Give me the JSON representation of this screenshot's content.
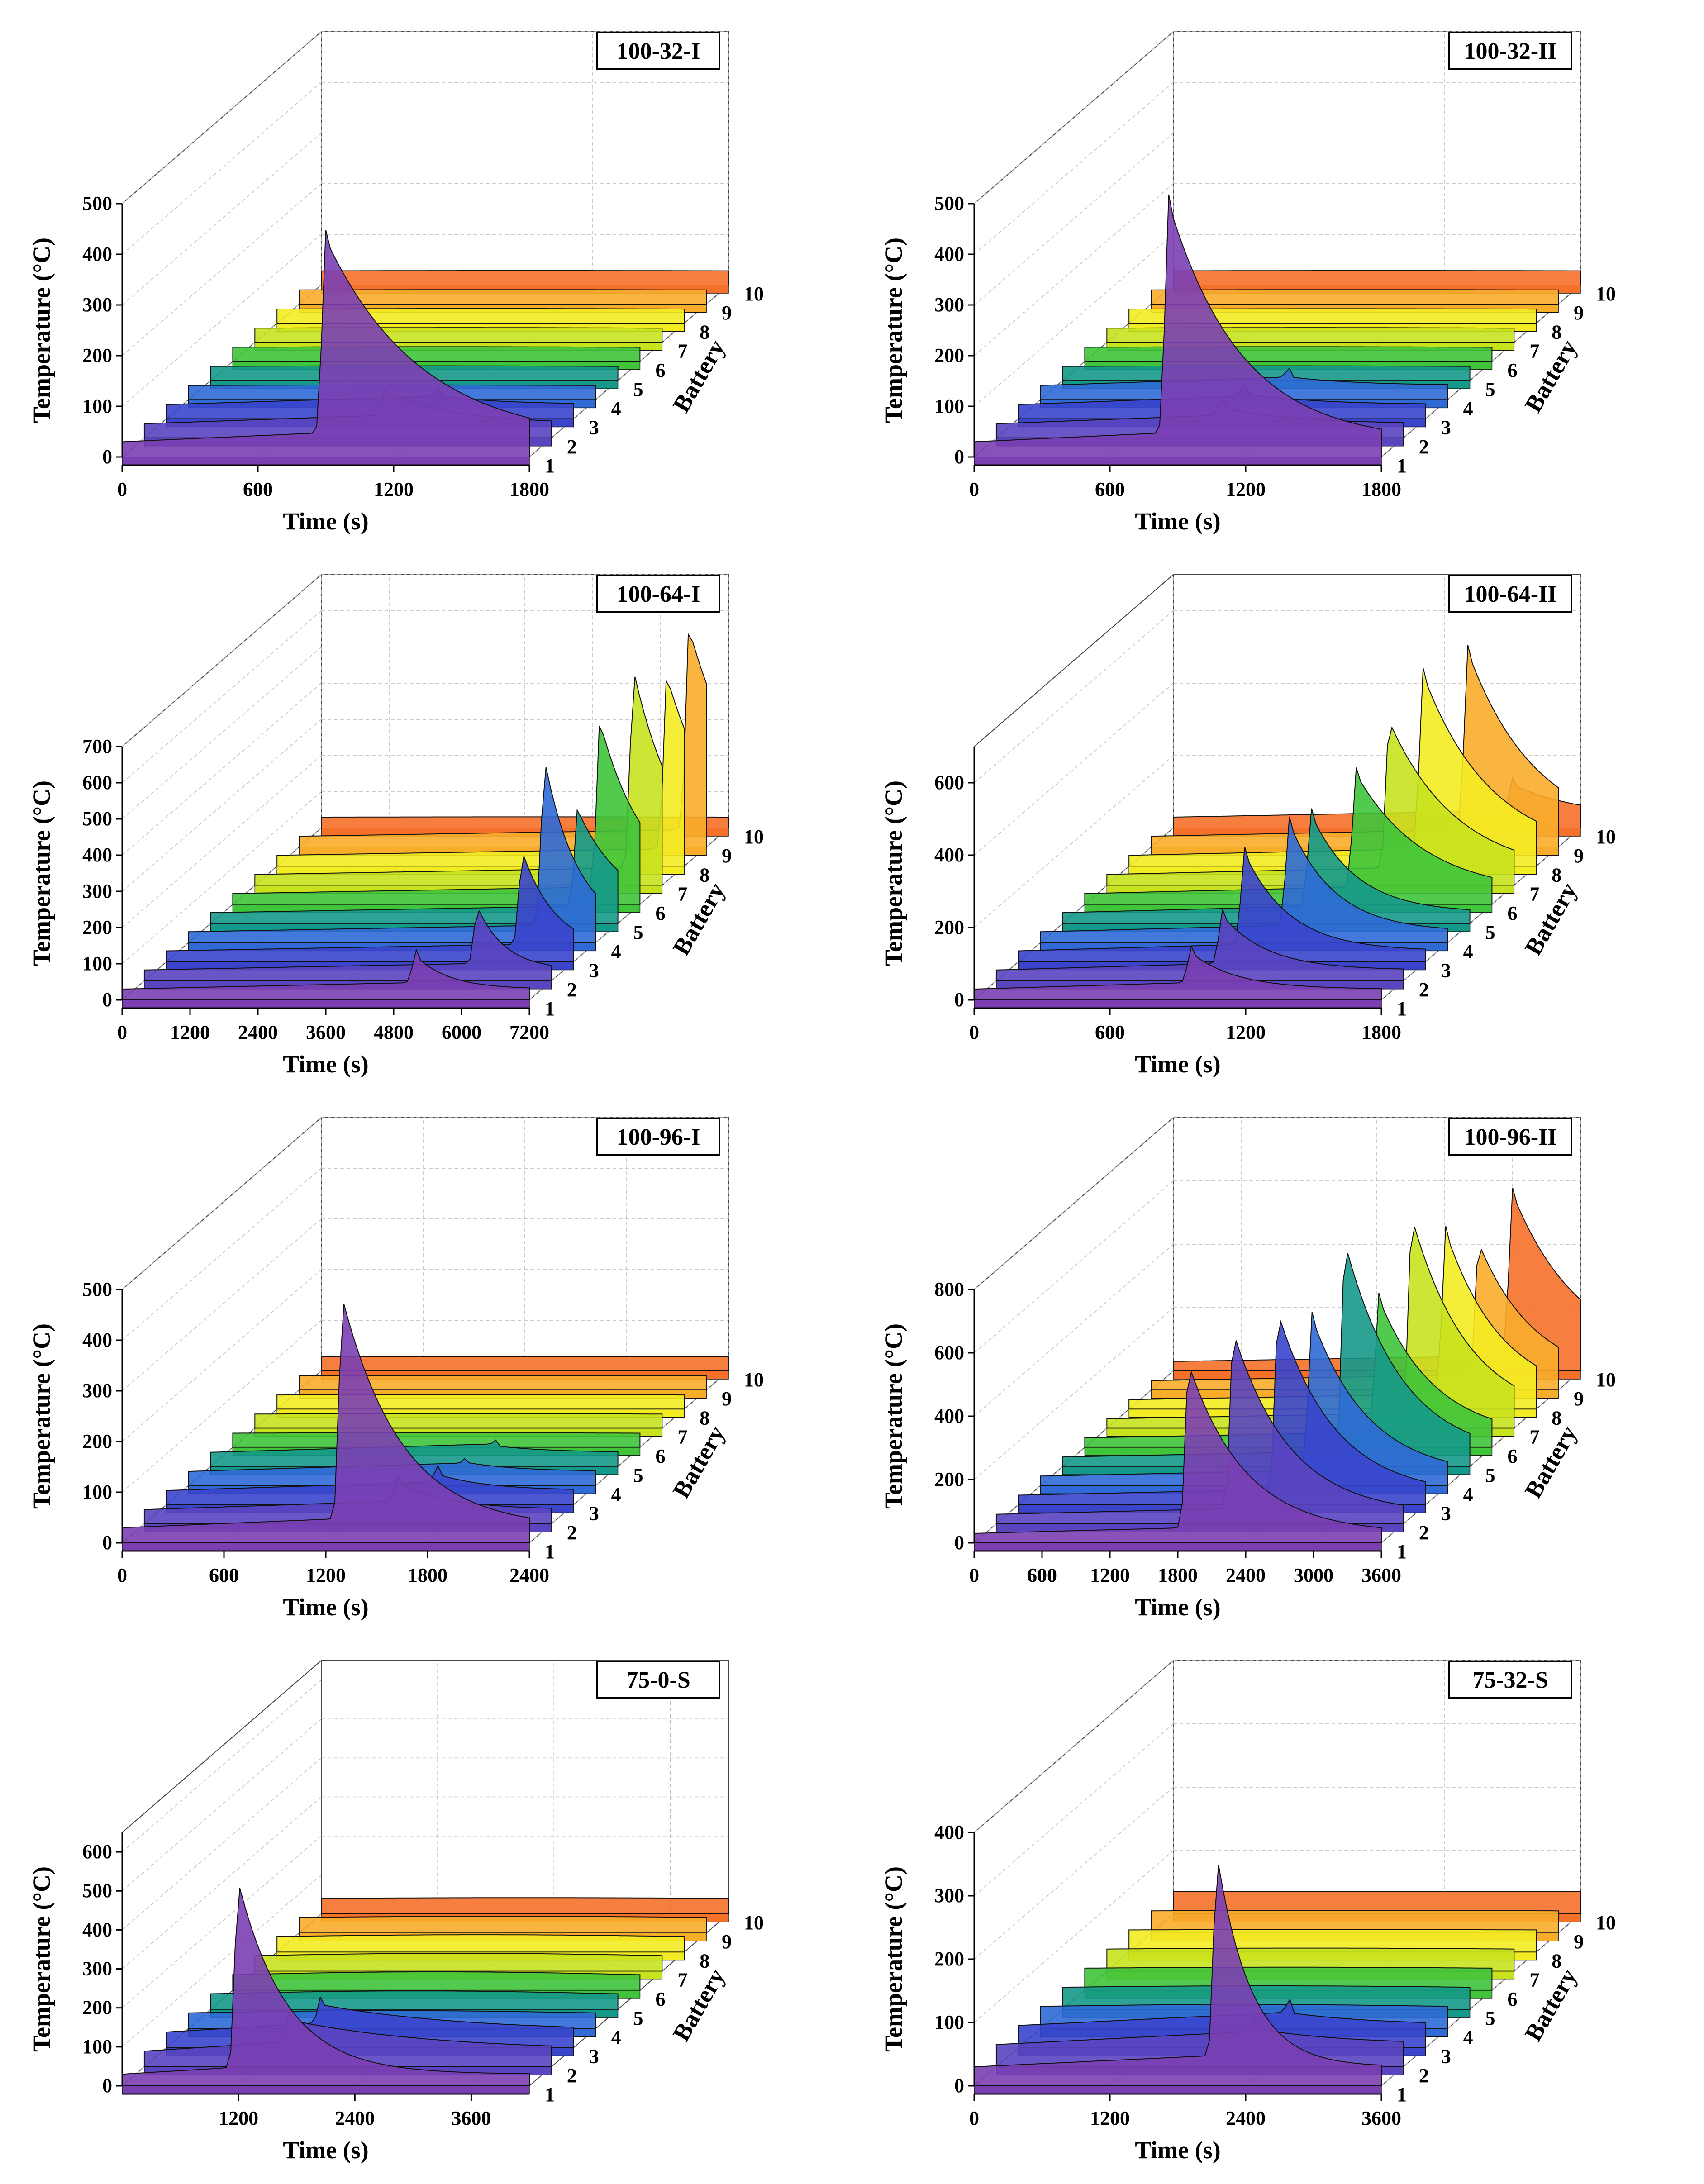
{
  "figure": {
    "z_label": "Temperature (°C)",
    "x_label": "Time (s)",
    "y_label": "Battery",
    "battery_ticks": [
      "1",
      "2",
      "3",
      "4",
      "5",
      "6",
      "7",
      "8",
      "9",
      "10"
    ],
    "colors": [
      "#7b3fb3",
      "#5a44c0",
      "#3a45cc",
      "#2f6ad6",
      "#15998a",
      "#3fc43a",
      "#c8e21e",
      "#f4ec22",
      "#f8ad2a",
      "#f5712a",
      "#ef3a34"
    ]
  },
  "chart_data": [
    {
      "type": "area",
      "title": "100-32-I",
      "xlim": [
        0,
        1800
      ],
      "xticks": [
        "0",
        "600",
        "1200",
        "1800"
      ],
      "xtick_values": [
        0,
        600,
        1200,
        1800
      ],
      "zlim": [
        0,
        500
      ],
      "zticks": [
        "0",
        "100",
        "200",
        "300",
        "400",
        "500"
      ],
      "zstep": 100,
      "series": [
        {
          "name": "1",
          "peak_time": 900,
          "peak_temp": 430,
          "base": 30,
          "tail": 420
        },
        {
          "name": "2",
          "peak_time": 1070,
          "peak_temp": 90,
          "base": 28,
          "tail": 300
        },
        {
          "name": "3",
          "peak_time": 1200,
          "peak_temp": 45,
          "base": 28,
          "tail": 300
        },
        {
          "name": "4",
          "peak_time": null,
          "peak_temp": 35,
          "base": 28
        },
        {
          "name": "5",
          "peak_time": null,
          "peak_temp": 35,
          "base": 28
        },
        {
          "name": "6",
          "peak_time": null,
          "peak_temp": 35,
          "base": 28
        },
        {
          "name": "7",
          "peak_time": null,
          "peak_temp": 35,
          "base": 28
        },
        {
          "name": "8",
          "peak_time": null,
          "peak_temp": 35,
          "base": 28
        },
        {
          "name": "9",
          "peak_time": null,
          "peak_temp": 32,
          "base": 28
        },
        {
          "name": "10",
          "peak_time": null,
          "peak_temp": 32,
          "base": 28
        }
      ]
    },
    {
      "type": "area",
      "title": "100-32-II",
      "xlim": [
        0,
        1800
      ],
      "xticks": [
        "0",
        "600",
        "1200",
        "1800"
      ],
      "xtick_values": [
        0,
        600,
        1200,
        1800
      ],
      "zlim": [
        0,
        500
      ],
      "zticks": [
        "0",
        "100",
        "200",
        "300",
        "400",
        "500"
      ],
      "zstep": 100,
      "series": [
        {
          "name": "1",
          "peak_time": 860,
          "peak_temp": 500,
          "base": 30,
          "tail": 320
        },
        {
          "name": "2",
          "peak_time": 1000,
          "peak_temp": 60,
          "base": 28,
          "tail": 300
        },
        {
          "name": "3",
          "peak_time": 1000,
          "peak_temp": 50,
          "base": 28,
          "tail": 300
        },
        {
          "name": "4",
          "peak_time": 1100,
          "peak_temp": 45,
          "base": 28,
          "tail": 300
        },
        {
          "name": "5",
          "peak_time": null,
          "peak_temp": 35,
          "base": 28
        },
        {
          "name": "6",
          "peak_time": null,
          "peak_temp": 35,
          "base": 28
        },
        {
          "name": "7",
          "peak_time": null,
          "peak_temp": 35,
          "base": 28
        },
        {
          "name": "8",
          "peak_time": null,
          "peak_temp": 32,
          "base": 28
        },
        {
          "name": "9",
          "peak_time": null,
          "peak_temp": 32,
          "base": 28
        },
        {
          "name": "10",
          "peak_time": null,
          "peak_temp": 32,
          "base": 28
        }
      ]
    },
    {
      "type": "area",
      "title": "100-64-I",
      "xlim": [
        0,
        7200
      ],
      "xticks": [
        "0",
        "1200",
        "2400",
        "3600",
        "4800",
        "6000",
        "7200"
      ],
      "xtick_values": [
        0,
        1200,
        2400,
        3600,
        4800,
        6000,
        7200
      ],
      "zlim": [
        0,
        700
      ],
      "zticks": [
        "0",
        "100",
        "200",
        "300",
        "400",
        "500",
        "600",
        "700"
      ],
      "zstep": 100,
      "series": [
        {
          "name": "1",
          "peak_time": 5200,
          "peak_temp": 120,
          "base": 30,
          "tail": 600
        },
        {
          "name": "2",
          "peak_time": 5900,
          "peak_temp": 200,
          "base": 30,
          "tail": 500
        },
        {
          "name": "3",
          "peak_time": 6300,
          "peak_temp": 300,
          "base": 30,
          "tail": 600
        },
        {
          "name": "4",
          "peak_time": 6300,
          "peak_temp": 500,
          "base": 30,
          "tail": 600
        },
        {
          "name": "5",
          "peak_time": 6500,
          "peak_temp": 310,
          "base": 30,
          "tail": 800
        },
        {
          "name": "6",
          "peak_time": 6500,
          "peak_temp": 500,
          "base": 30,
          "tail": 800
        },
        {
          "name": "7",
          "peak_time": 6700,
          "peak_temp": 590,
          "base": 30,
          "tail": 800
        },
        {
          "name": "8",
          "peak_time": 6900,
          "peak_temp": 520,
          "base": 30,
          "tail": 900
        },
        {
          "name": "9",
          "peak_time": 6900,
          "peak_temp": 600,
          "base": 30,
          "tail": 1000
        },
        {
          "name": "10",
          "peak_time": null,
          "peak_temp": 35,
          "base": 30
        }
      ]
    },
    {
      "type": "area",
      "title": "100-64-II",
      "xlim": [
        0,
        1800
      ],
      "xticks": [
        "0",
        "600",
        "1200",
        "1800"
      ],
      "xtick_values": [
        0,
        600,
        1200,
        1800
      ],
      "zlim": [
        0,
        700
      ],
      "zticks": [
        "0",
        "200",
        "400",
        "600"
      ],
      "zstep": 200,
      "series": [
        {
          "name": "1",
          "peak_time": 960,
          "peak_temp": 130,
          "base": 30,
          "tail": 200
        },
        {
          "name": "2",
          "peak_time": 1000,
          "peak_temp": 180,
          "base": 30,
          "tail": 200
        },
        {
          "name": "3",
          "peak_time": 1000,
          "peak_temp": 300,
          "base": 30,
          "tail": 200
        },
        {
          "name": "4",
          "peak_time": 1100,
          "peak_temp": 330,
          "base": 30,
          "tail": 200
        },
        {
          "name": "5",
          "peak_time": 1100,
          "peak_temp": 300,
          "base": 30,
          "tail": 200
        },
        {
          "name": "6",
          "peak_time": 1200,
          "peak_temp": 360,
          "base": 30,
          "tail": 300
        },
        {
          "name": "7",
          "peak_time": 1250,
          "peak_temp": 450,
          "base": 30,
          "tail": 300
        },
        {
          "name": "8",
          "peak_time": 1300,
          "peak_temp": 530,
          "base": 30,
          "tail": 300
        },
        {
          "name": "9",
          "peak_time": 1400,
          "peak_temp": 540,
          "base": 30,
          "tail": 300
        },
        {
          "name": "10",
          "peak_time": 1500,
          "peak_temp": 120,
          "base": 30,
          "tail": 300
        }
      ]
    },
    {
      "type": "area",
      "title": "100-96-I",
      "xlim": [
        0,
        2400
      ],
      "xticks": [
        "0",
        "600",
        "1200",
        "1800",
        "2400"
      ],
      "xtick_values": [
        0,
        600,
        1200,
        1800,
        2400
      ],
      "zlim": [
        0,
        500
      ],
      "zticks": [
        "0",
        "100",
        "200",
        "300",
        "400",
        "500"
      ],
      "zstep": 100,
      "series": [
        {
          "name": "1",
          "peak_time": 1300,
          "peak_temp": 480,
          "base": 30,
          "tail": 350
        },
        {
          "name": "2",
          "peak_time": 1500,
          "peak_temp": 80,
          "base": 28,
          "tail": 300
        },
        {
          "name": "3",
          "peak_time": 1600,
          "peak_temp": 60,
          "base": 28,
          "tail": 300
        },
        {
          "name": "4",
          "peak_time": 1650,
          "peak_temp": 45,
          "base": 28,
          "tail": 300
        },
        {
          "name": "5",
          "peak_time": 1700,
          "peak_temp": 40,
          "base": 28,
          "tail": 300
        },
        {
          "name": "6",
          "peak_time": null,
          "peak_temp": 35,
          "base": 28
        },
        {
          "name": "7",
          "peak_time": null,
          "peak_temp": 35,
          "base": 28
        },
        {
          "name": "8",
          "peak_time": null,
          "peak_temp": 32,
          "base": 28
        },
        {
          "name": "9",
          "peak_time": null,
          "peak_temp": 32,
          "base": 28
        },
        {
          "name": "10",
          "peak_time": null,
          "peak_temp": 32,
          "base": 28
        }
      ]
    },
    {
      "type": "area",
      "title": "100-96-II",
      "xlim": [
        0,
        3600
      ],
      "xticks": [
        "0",
        "600",
        "1200",
        "1800",
        "2400",
        "3000",
        "3600"
      ],
      "xtick_values": [
        0,
        600,
        1200,
        1800,
        2400,
        3000,
        3600
      ],
      "zlim": [
        0,
        800
      ],
      "zticks": [
        "0",
        "200",
        "400",
        "600",
        "800"
      ],
      "zstep": 200,
      "series": [
        {
          "name": "1",
          "peak_time": 1900,
          "peak_temp": 560,
          "base": 30,
          "tail": 500
        },
        {
          "name": "2",
          "peak_time": 2100,
          "peak_temp": 600,
          "base": 30,
          "tail": 500
        },
        {
          "name": "3",
          "peak_time": 2300,
          "peak_temp": 600,
          "base": 30,
          "tail": 500
        },
        {
          "name": "4",
          "peak_time": 2400,
          "peak_temp": 530,
          "base": 30,
          "tail": 500
        },
        {
          "name": "5",
          "peak_time": 2500,
          "peak_temp": 700,
          "base": 30,
          "tail": 500
        },
        {
          "name": "6",
          "peak_time": 2600,
          "peak_temp": 470,
          "base": 30,
          "tail": 500
        },
        {
          "name": "7",
          "peak_time": 2700,
          "peak_temp": 660,
          "base": 30,
          "tail": 500
        },
        {
          "name": "8",
          "peak_time": 2800,
          "peak_temp": 560,
          "base": 30,
          "tail": 500
        },
        {
          "name": "9",
          "peak_time": 2900,
          "peak_temp": 460,
          "base": 30,
          "tail": 500
        },
        {
          "name": "10",
          "peak_time": 3000,
          "peak_temp": 560,
          "base": 30,
          "tail": 600
        }
      ]
    },
    {
      "type": "area",
      "title": "75-0-S",
      "xlim": [
        0,
        4200
      ],
      "xticks": [
        "1200",
        "2400",
        "3600"
      ],
      "xtick_values": [
        1200,
        2400,
        3600
      ],
      "zlim": [
        0,
        650
      ],
      "zticks": [
        "0",
        "100",
        "200",
        "300",
        "400",
        "500",
        "600"
      ],
      "zstep": 100,
      "series": [
        {
          "name": "1",
          "peak_time": 1200,
          "peak_temp": 520,
          "base": 30,
          "tail": 500
        },
        {
          "name": "2",
          "peak_time": 1500,
          "peak_temp": 120,
          "base": 40,
          "tail": 1500
        },
        {
          "name": "3",
          "peak_time": 1600,
          "peak_temp": 110,
          "base": 40,
          "tail": 1500
        },
        {
          "name": "4",
          "peak_time": null,
          "peak_temp": 80,
          "base": 40
        },
        {
          "name": "5",
          "peak_time": null,
          "peak_temp": 90,
          "base": 40
        },
        {
          "name": "6",
          "peak_time": null,
          "peak_temp": 90,
          "base": 40
        },
        {
          "name": "7",
          "peak_time": null,
          "peak_temp": 80,
          "base": 40
        },
        {
          "name": "8",
          "peak_time": null,
          "peak_temp": 70,
          "base": 40
        },
        {
          "name": "9",
          "peak_time": null,
          "peak_temp": 60,
          "base": 40
        },
        {
          "name": "10",
          "peak_time": null,
          "peak_temp": 50,
          "base": 40
        }
      ]
    },
    {
      "type": "area",
      "title": "75-32-S",
      "xlim": [
        0,
        3600
      ],
      "xticks": [
        "0",
        "1200",
        "2400",
        "3600"
      ],
      "xtick_values": [
        0,
        1200,
        2400,
        3600
      ],
      "zlim": [
        0,
        400
      ],
      "zticks": [
        "0",
        "100",
        "200",
        "300",
        "400"
      ],
      "zstep": 100,
      "series": [
        {
          "name": "1",
          "peak_time": 2150,
          "peak_temp": 360,
          "base": 30,
          "tail": 300
        },
        {
          "name": "2",
          "peak_time": 2300,
          "peak_temp": 60,
          "base": 35,
          "tail": 800
        },
        {
          "name": "3",
          "peak_time": 2400,
          "peak_temp": 55,
          "base": 35,
          "tail": 800
        },
        {
          "name": "4",
          "peak_time": null,
          "peak_temp": 55,
          "base": 35
        },
        {
          "name": "5",
          "peak_time": null,
          "peak_temp": 50,
          "base": 35
        },
        {
          "name": "6",
          "peak_time": null,
          "peak_temp": 45,
          "base": 35
        },
        {
          "name": "7",
          "peak_time": null,
          "peak_temp": 45,
          "base": 35
        },
        {
          "name": "8",
          "peak_time": null,
          "peak_temp": 40,
          "base": 35
        },
        {
          "name": "9",
          "peak_time": null,
          "peak_temp": 40,
          "base": 35
        },
        {
          "name": "10",
          "peak_time": null,
          "peak_temp": 40,
          "base": 35
        }
      ]
    }
  ]
}
